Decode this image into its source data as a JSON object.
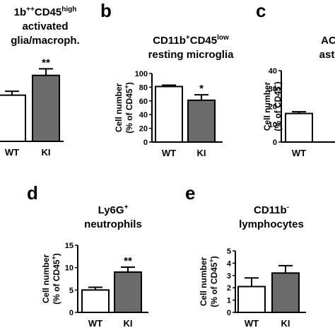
{
  "figure": {
    "panels": [
      {
        "letter": "",
        "title_parts": [
          [
            "1b",
            ""
          ],
          [
            "++",
            "sup"
          ],
          [
            "CD45",
            ""
          ],
          [
            "high",
            "sup"
          ]
        ],
        "title_line2": "activated",
        "title_line3": "glia/macroph."
      },
      {
        "letter": "b",
        "title_parts": [
          [
            "CD11b",
            ""
          ],
          [
            "+",
            "sup"
          ],
          [
            "CD45",
            ""
          ],
          [
            "low",
            "sup"
          ]
        ],
        "title_line2": "resting microglia",
        "title_line3": ""
      },
      {
        "letter": "c",
        "title_parts": [
          [
            "ACS",
            ""
          ]
        ],
        "title_line2": "astro",
        "title_line3": ""
      },
      {
        "letter": "d",
        "title_parts": [
          [
            "Ly6G",
            ""
          ],
          [
            "+",
            "sup"
          ]
        ],
        "title_line2": "neutrophils",
        "title_line3": ""
      },
      {
        "letter": "e",
        "title_parts": [
          [
            "CD11b",
            ""
          ],
          [
            "-",
            "sup"
          ]
        ],
        "title_line2": "lymphocytes",
        "title_line3": ""
      }
    ]
  },
  "chart_data": [
    {
      "type": "bar",
      "panel": "a",
      "categories": [
        "WT",
        "KI"
      ],
      "values": [
        14,
        20
      ],
      "errors": [
        1.2,
        2.0
      ],
      "colors": [
        "#ffffff",
        "#6b6b6b"
      ],
      "significance": [
        "",
        "**"
      ],
      "ylim": [
        0,
        30
      ],
      "yticks": [],
      "ylabel_line1": "",
      "ylabel_line2": ""
    },
    {
      "type": "bar",
      "panel": "b",
      "categories": [
        "WT",
        "KI"
      ],
      "values": [
        81,
        61
      ],
      "errors": [
        2,
        8
      ],
      "colors": [
        "#ffffff",
        "#6b6b6b"
      ],
      "significance": [
        "",
        "*"
      ],
      "ylim": [
        0,
        100
      ],
      "yticks": [
        "0",
        "20",
        "40",
        "60",
        "80",
        "100"
      ],
      "ylabel_line1": "Cell number",
      "ylabel_line2": "(% of CD45",
      "ylabel_sup": "+",
      "ylabel_close": ")"
    },
    {
      "type": "bar",
      "panel": "c",
      "categories": [
        "WT"
      ],
      "values": [
        16
      ],
      "errors": [
        1
      ],
      "colors": [
        "#ffffff"
      ],
      "significance": [
        ""
      ],
      "ylim": [
        0,
        40
      ],
      "yticks": [
        "0",
        "10",
        "20",
        "30",
        "40"
      ],
      "ylabel_line1": "Cell number",
      "ylabel_line2": "(% of CD45",
      "ylabel_sup": "-",
      "ylabel_close": ")"
    },
    {
      "type": "bar",
      "panel": "d",
      "categories": [
        "WT",
        "KI"
      ],
      "values": [
        5,
        9
      ],
      "errors": [
        0.6,
        1.1
      ],
      "colors": [
        "#ffffff",
        "#6b6b6b"
      ],
      "significance": [
        "",
        "**"
      ],
      "ylim": [
        0,
        15
      ],
      "yticks": [
        "0",
        "5",
        "10",
        "15"
      ],
      "ylabel_line1": "Cell number",
      "ylabel_line2": "(% of CD45",
      "ylabel_sup": "+",
      "ylabel_close": ")"
    },
    {
      "type": "bar",
      "panel": "e",
      "categories": [
        "WT",
        "KI"
      ],
      "values": [
        2.1,
        3.2
      ],
      "errors": [
        0.7,
        0.6
      ],
      "colors": [
        "#ffffff",
        "#6b6b6b"
      ],
      "significance": [
        "",
        ""
      ],
      "ylim": [
        0,
        5
      ],
      "yticks": [
        "0",
        "1",
        "2",
        "3",
        "4",
        "5"
      ],
      "ylabel_line1": "Cell number",
      "ylabel_line2": "(% of CD45",
      "ylabel_sup": "+",
      "ylabel_close": ")"
    }
  ]
}
